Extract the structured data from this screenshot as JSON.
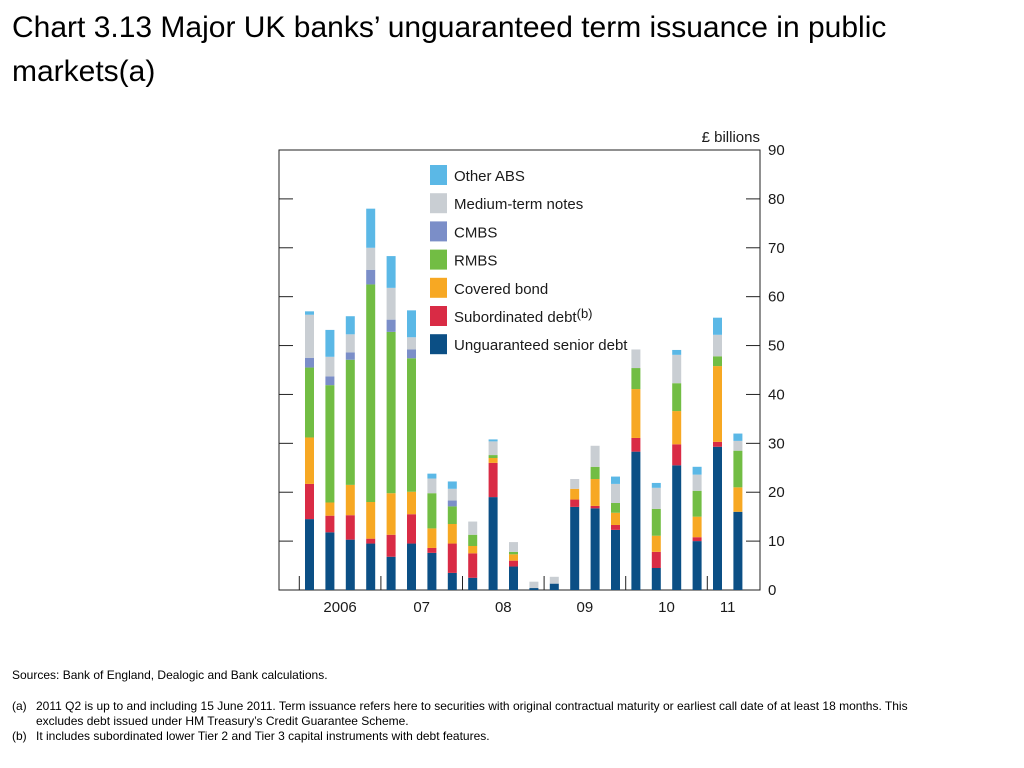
{
  "title": "Chart 3.13  Major UK banks’ unguaranteed term issuance in public markets(a)",
  "sources": "Sources:  Bank of England, Dealogic and Bank calculations.",
  "notes": [
    {
      "mark": "(a)",
      "text": "2011 Q2 is up to and including 15 June 2011.  Term issuance refers here to securities with original contractual maturity or earliest call date of at least 18 months.  This excludes debt issued under HM Treasury’s Credit Guarantee Scheme."
    },
    {
      "mark": "(b)",
      "text": "It includes subordinated lower Tier 2 and Tier 3 capital instruments with debt features."
    }
  ],
  "colors": {
    "Unguaranteed senior debt": "#0b4f85",
    "Subordinated debt": "#d92b45",
    "Covered bond": "#f7a823",
    "RMBS": "#72bd44",
    "CMBS": "#7b8ec8",
    "Medium-term notes": "#c9ced3",
    "Other ABS": "#5bb8e6"
  },
  "chart_data": {
    "type": "bar",
    "stacked": true,
    "title": "Chart 3.13  Major UK banks’ unguaranteed term issuance in public markets(a)",
    "ylabel": "£ billions",
    "ylim": [
      0,
      90
    ],
    "yticks": [
      0,
      10,
      20,
      30,
      40,
      50,
      60,
      70,
      80,
      90
    ],
    "y_axis_side": "right",
    "grid": false,
    "legend_position": "top-left",
    "periods": [
      "2006 Q1",
      "2006 Q2",
      "2006 Q3",
      "2006 Q4",
      "2007 Q1",
      "2007 Q2",
      "2007 Q3",
      "2007 Q4",
      "2008 Q1",
      "2008 Q2",
      "2008 Q3",
      "2008 Q4",
      "2009 Q1",
      "2009 Q2",
      "2009 Q3",
      "2009 Q4",
      "2010 Q1",
      "2010 Q2",
      "2010 Q3",
      "2010 Q4",
      "2011 Q1",
      "2011 Q2"
    ],
    "year_labels": [
      {
        "label": "2006",
        "center_index": 1.5
      },
      {
        "label": "07",
        "center_index": 5.5
      },
      {
        "label": "08",
        "center_index": 9.5
      },
      {
        "label": "09",
        "center_index": 13.5
      },
      {
        "label": "10",
        "center_index": 17.5
      },
      {
        "label": "11",
        "center_index": 20.5
      }
    ],
    "year_boundaries_after_index": [
      -1,
      3,
      7,
      11,
      15,
      19
    ],
    "legend_order": [
      "Other ABS",
      "Medium-term notes",
      "CMBS",
      "RMBS",
      "Covered bond",
      "Subordinated debt",
      "Unguaranteed senior debt"
    ],
    "legend_labels": {
      "Other ABS": "Other ABS",
      "Medium-term notes": "Medium-term notes",
      "CMBS": "CMBS",
      "RMBS": "RMBS",
      "Covered bond": "Covered bond",
      "Subordinated debt": "Subordinated debt",
      "Unguaranteed senior debt": "Unguaranteed senior debt"
    },
    "legend_superscripts": {
      "Subordinated debt": "(b)"
    },
    "series": [
      {
        "name": "Unguaranteed senior debt",
        "values": [
          14.5,
          11.8,
          10.3,
          9.5,
          6.8,
          9.5,
          7.6,
          3.5,
          2.5,
          19.0,
          4.8,
          0.4,
          1.3,
          17.0,
          16.7,
          12.3,
          28.3,
          4.5,
          25.5,
          10.0,
          29.3,
          16.0
        ]
      },
      {
        "name": "Subordinated debt",
        "values": [
          7.2,
          3.4,
          5.0,
          1.0,
          4.5,
          6.0,
          1.0,
          6.0,
          5.0,
          7.0,
          1.2,
          0.0,
          0.0,
          1.5,
          0.5,
          1.0,
          2.8,
          3.3,
          4.3,
          0.8,
          1.0,
          0.0
        ]
      },
      {
        "name": "Covered bond",
        "values": [
          9.5,
          2.7,
          6.2,
          7.5,
          8.5,
          4.6,
          4.0,
          4.0,
          1.5,
          1.0,
          1.3,
          0.0,
          0.0,
          2.2,
          5.5,
          2.5,
          10.0,
          3.3,
          6.8,
          4.2,
          15.5,
          5.0
        ]
      },
      {
        "name": "RMBS",
        "values": [
          14.3,
          24.0,
          25.6,
          44.5,
          33.0,
          27.3,
          7.2,
          3.6,
          2.3,
          0.6,
          0.5,
          0.0,
          0.0,
          0.0,
          2.5,
          2.0,
          4.3,
          5.5,
          5.7,
          5.3,
          2.0,
          7.5
        ]
      },
      {
        "name": "CMBS",
        "values": [
          2.0,
          1.8,
          1.5,
          3.0,
          2.5,
          1.8,
          0.0,
          1.2,
          0.0,
          0.0,
          0.0,
          0.0,
          0.0,
          0.0,
          0.0,
          0.0,
          0.0,
          0.0,
          0.0,
          0.0,
          0.0,
          0.0
        ]
      },
      {
        "name": "Medium-term notes",
        "values": [
          8.8,
          4.0,
          3.7,
          4.5,
          6.5,
          2.5,
          3.0,
          2.4,
          2.7,
          2.8,
          2.0,
          1.3,
          1.4,
          2.0,
          4.3,
          3.9,
          3.8,
          4.3,
          5.8,
          3.3,
          4.4,
          2.0
        ]
      },
      {
        "name": "Other ABS",
        "values": [
          0.7,
          5.5,
          3.7,
          8.0,
          6.5,
          5.5,
          1.0,
          1.5,
          0.0,
          0.4,
          0.0,
          0.0,
          0.0,
          0.0,
          0.0,
          1.5,
          0.0,
          1.0,
          1.0,
          1.6,
          3.5,
          1.5
        ]
      }
    ]
  }
}
